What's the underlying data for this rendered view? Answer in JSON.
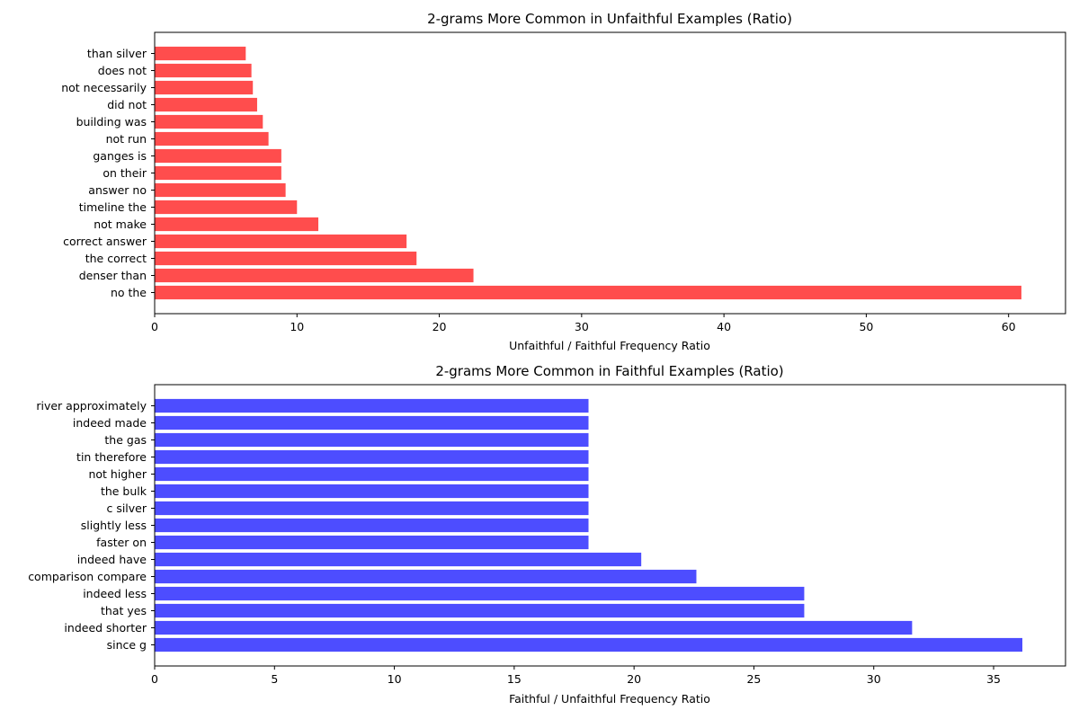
{
  "chart_data": [
    {
      "type": "bar",
      "orientation": "horizontal",
      "title": "2-grams More Common in Unfaithful Examples (Ratio)",
      "xlabel": "Unfaithful / Faithful Frequency Ratio",
      "ylabel": "",
      "xlim": [
        0,
        64
      ],
      "xticks": [
        0,
        10,
        20,
        30,
        40,
        50,
        60
      ],
      "color": "#ff4d4d",
      "categories": [
        "than silver",
        "does not",
        "not necessarily",
        "did not",
        "building was",
        "not run",
        "ganges is",
        "on their",
        "answer no",
        "timeline the",
        "not make",
        "correct answer",
        "the correct",
        "denser than",
        "no the"
      ],
      "values": [
        6.4,
        6.8,
        6.9,
        7.2,
        7.6,
        8.0,
        8.9,
        8.9,
        9.2,
        10.0,
        11.5,
        17.7,
        18.4,
        22.4,
        60.9
      ]
    },
    {
      "type": "bar",
      "orientation": "horizontal",
      "title": "2-grams More Common in Faithful Examples (Ratio)",
      "xlabel": "Faithful / Unfaithful Frequency Ratio",
      "ylabel": "",
      "xlim": [
        0,
        38
      ],
      "xticks": [
        0,
        5,
        10,
        15,
        20,
        25,
        30,
        35
      ],
      "color": "#4d4dff",
      "categories": [
        "river approximately",
        "indeed made",
        "the gas",
        "tin therefore",
        "not higher",
        "the bulk",
        "c silver",
        "slightly less",
        "faster on",
        "indeed have",
        "comparison compare",
        "indeed less",
        "that yes",
        "indeed shorter",
        "since g"
      ],
      "values": [
        18.1,
        18.1,
        18.1,
        18.1,
        18.1,
        18.1,
        18.1,
        18.1,
        18.1,
        20.3,
        22.6,
        27.1,
        27.1,
        31.6,
        36.2
      ]
    }
  ]
}
